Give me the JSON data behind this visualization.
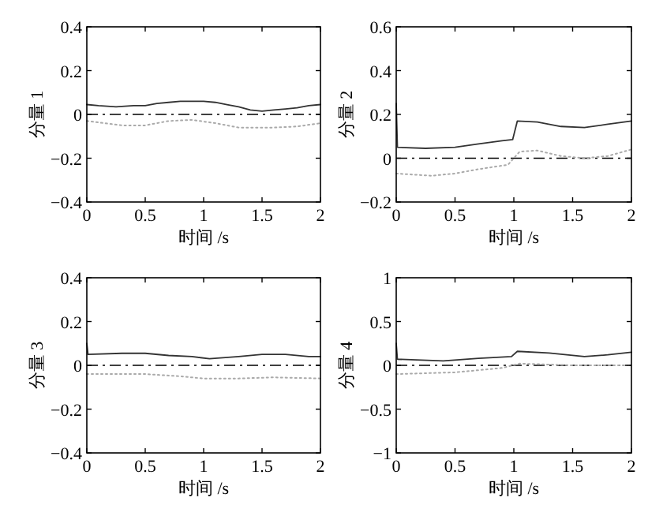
{
  "chart_data": [
    {
      "type": "line",
      "xlabel": "时间 /s",
      "ylabel": "分量 1",
      "xlim": [
        0,
        2
      ],
      "ylim": [
        -0.4,
        0.4
      ],
      "xticks": [
        0,
        0.5,
        1,
        1.5,
        2
      ],
      "yticks": [
        -0.4,
        -0.2,
        0,
        0.2,
        0.4
      ],
      "grid": false,
      "series": [
        {
          "color": "#333333",
          "line_style": "solid",
          "x": [
            0,
            0.1,
            0.25,
            0.4,
            0.5,
            0.6,
            0.7,
            0.8,
            0.9,
            1.0,
            1.1,
            1.2,
            1.3,
            1.4,
            1.5,
            1.6,
            1.7,
            1.8,
            1.9,
            2.0
          ],
          "values": [
            0.045,
            0.04,
            0.035,
            0.04,
            0.04,
            0.05,
            0.055,
            0.06,
            0.06,
            0.06,
            0.055,
            0.045,
            0.035,
            0.02,
            0.015,
            0.02,
            0.025,
            0.03,
            0.04,
            0.045
          ]
        },
        {
          "color": "#aaaaaa",
          "line_style": "dotted",
          "x": [
            0,
            0.3,
            0.5,
            0.7,
            0.9,
            1.1,
            1.3,
            1.6,
            1.8,
            2.0
          ],
          "values": [
            -0.03,
            -0.05,
            -0.05,
            -0.03,
            -0.025,
            -0.04,
            -0.06,
            -0.06,
            -0.055,
            -0.04
          ]
        }
      ],
      "ref_lines": [
        {
          "axis": "y",
          "value": 0,
          "color": "#000000",
          "line_style": "dashdot"
        }
      ]
    },
    {
      "type": "line",
      "xlabel": "时间 /s",
      "ylabel": "分量 2",
      "xlim": [
        0,
        2
      ],
      "ylim": [
        -0.2,
        0.6
      ],
      "xticks": [
        0,
        0.5,
        1,
        1.5,
        2
      ],
      "yticks": [
        -0.2,
        0,
        0.2,
        0.4,
        0.6
      ],
      "grid": false,
      "series": [
        {
          "color": "#333333",
          "line_style": "solid",
          "x": [
            0,
            0.01,
            0.25,
            0.5,
            0.7,
            0.9,
            0.99,
            1.03,
            1.2,
            1.4,
            1.6,
            1.8,
            2.0
          ],
          "values": [
            0.25,
            0.05,
            0.045,
            0.05,
            0.065,
            0.08,
            0.085,
            0.17,
            0.165,
            0.145,
            0.14,
            0.155,
            0.17
          ]
        },
        {
          "color": "#aaaaaa",
          "line_style": "dotted",
          "x": [
            0,
            0.3,
            0.5,
            0.7,
            0.95,
            1.05,
            1.2,
            1.4,
            1.6,
            1.8,
            2.0
          ],
          "values": [
            -0.07,
            -0.08,
            -0.07,
            -0.05,
            -0.03,
            0.03,
            0.035,
            0.01,
            0.0,
            0.01,
            0.04
          ]
        }
      ],
      "ref_lines": [
        {
          "axis": "y",
          "value": 0,
          "color": "#000000",
          "line_style": "dashdot"
        }
      ]
    },
    {
      "type": "line",
      "xlabel": "时间 /s",
      "ylabel": "分量 3",
      "xlim": [
        0,
        2
      ],
      "ylim": [
        -0.4,
        0.4
      ],
      "xticks": [
        0,
        0.5,
        1,
        1.5,
        2
      ],
      "yticks": [
        -0.4,
        -0.2,
        0,
        0.2,
        0.4
      ],
      "grid": false,
      "series": [
        {
          "color": "#333333",
          "line_style": "solid",
          "x": [
            0,
            0.01,
            0.3,
            0.5,
            0.7,
            0.9,
            1.05,
            1.3,
            1.5,
            1.7,
            1.9,
            2.0
          ],
          "values": [
            0.1,
            0.05,
            0.055,
            0.055,
            0.045,
            0.04,
            0.03,
            0.04,
            0.05,
            0.05,
            0.04,
            0.04
          ]
        },
        {
          "color": "#aaaaaa",
          "line_style": "dotted",
          "x": [
            0,
            0.5,
            0.8,
            1.0,
            1.3,
            1.6,
            2.0
          ],
          "values": [
            -0.04,
            -0.04,
            -0.05,
            -0.06,
            -0.06,
            -0.055,
            -0.06
          ]
        }
      ],
      "ref_lines": [
        {
          "axis": "y",
          "value": 0,
          "color": "#000000",
          "line_style": "dashdot"
        }
      ]
    },
    {
      "type": "line",
      "xlabel": "时间 /s",
      "ylabel": "分量 4",
      "xlim": [
        0,
        2
      ],
      "ylim": [
        -1,
        1
      ],
      "xticks": [
        0,
        0.5,
        1,
        1.5,
        2
      ],
      "yticks": [
        -1,
        -0.5,
        0,
        0.5,
        1
      ],
      "grid": false,
      "series": [
        {
          "color": "#333333",
          "line_style": "solid",
          "x": [
            0,
            0.01,
            0.4,
            0.7,
            0.98,
            1.03,
            1.3,
            1.6,
            1.8,
            2.0
          ],
          "values": [
            0.25,
            0.07,
            0.05,
            0.08,
            0.1,
            0.16,
            0.14,
            0.1,
            0.12,
            0.15
          ]
        },
        {
          "color": "#aaaaaa",
          "line_style": "dotted",
          "x": [
            0,
            0.5,
            0.9,
            1.05,
            1.5,
            2.0
          ],
          "values": [
            -0.1,
            -0.08,
            -0.03,
            0.02,
            0.0,
            0.0
          ]
        }
      ],
      "ref_lines": [
        {
          "axis": "y",
          "value": 0,
          "color": "#000000",
          "line_style": "dashdot"
        }
      ]
    }
  ]
}
